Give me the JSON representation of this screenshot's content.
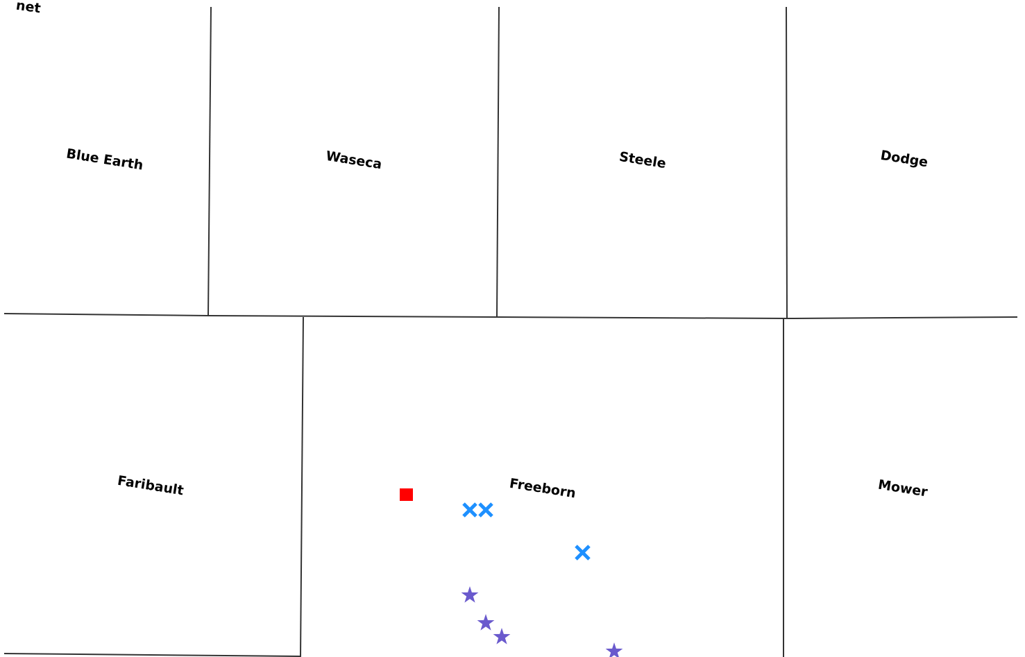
{
  "map": {
    "counties": [
      {
        "id": "cut-top-left",
        "name": "net"
      },
      {
        "id": "blue-earth",
        "name": "Blue Earth"
      },
      {
        "id": "waseca",
        "name": "Waseca"
      },
      {
        "id": "steele",
        "name": "Steele"
      },
      {
        "id": "dodge",
        "name": "Dodge"
      },
      {
        "id": "faribault",
        "name": "Faribault"
      },
      {
        "id": "freeborn",
        "name": "Freeborn"
      },
      {
        "id": "mower",
        "name": "Mower"
      }
    ],
    "markers": [
      {
        "type": "square",
        "color": "#ff0000",
        "icon": "square-marker-icon"
      },
      {
        "type": "x",
        "color": "#1e90ff",
        "icon": "x-marker-icon"
      },
      {
        "type": "x",
        "color": "#1e90ff",
        "icon": "x-marker-icon"
      },
      {
        "type": "x",
        "color": "#1e90ff",
        "icon": "x-marker-icon"
      },
      {
        "type": "star",
        "color": "#6a5acd",
        "icon": "star-marker-icon"
      },
      {
        "type": "star",
        "color": "#6a5acd",
        "icon": "star-marker-icon"
      },
      {
        "type": "star",
        "color": "#6a5acd",
        "icon": "star-marker-icon"
      },
      {
        "type": "star",
        "color": "#6a5acd",
        "icon": "star-marker-icon"
      }
    ]
  }
}
